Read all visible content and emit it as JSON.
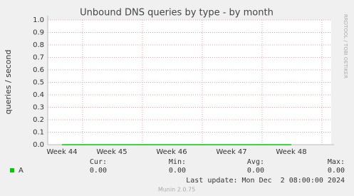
{
  "chart_data": {
    "type": "line",
    "title": "Unbound DNS queries by type - by month",
    "y_label": "queries / second",
    "side_label": "RRDTOOL / TOBI OETIKER",
    "categories": [
      "Week 44",
      "Week 45",
      "Week 46",
      "Week 47",
      "Week 48"
    ],
    "series": [
      {
        "name": "A",
        "color": "#00cc00",
        "values": [
          0,
          0,
          0,
          0,
          0
        ]
      }
    ],
    "ylim": [
      0,
      1
    ],
    "yticks": [
      {
        "value": 0,
        "label": "0.0"
      },
      {
        "value": 0.1,
        "label": "0.1"
      },
      {
        "value": 0.2,
        "label": "0.2"
      },
      {
        "value": 0.3,
        "label": "0.3"
      },
      {
        "value": 0.4,
        "label": "0.4"
      },
      {
        "value": 0.5,
        "label": "0.5"
      },
      {
        "value": 0.6,
        "label": "0.6"
      },
      {
        "value": 0.7,
        "label": "0.7"
      },
      {
        "value": 0.8,
        "label": "0.8"
      },
      {
        "value": 0.9,
        "label": "0.9"
      },
      {
        "value": 1,
        "label": "1.0"
      }
    ],
    "grid": true,
    "legend_headers": [
      "Cur:",
      "Min:",
      "Avg:",
      "Max:"
    ],
    "legend_values": [
      "0.00",
      "0.00",
      "0.00",
      "0.00"
    ],
    "last_update": "Last update: Mon Dec  2 08:00:00 2024",
    "footer": "Munin 2.0.75"
  }
}
